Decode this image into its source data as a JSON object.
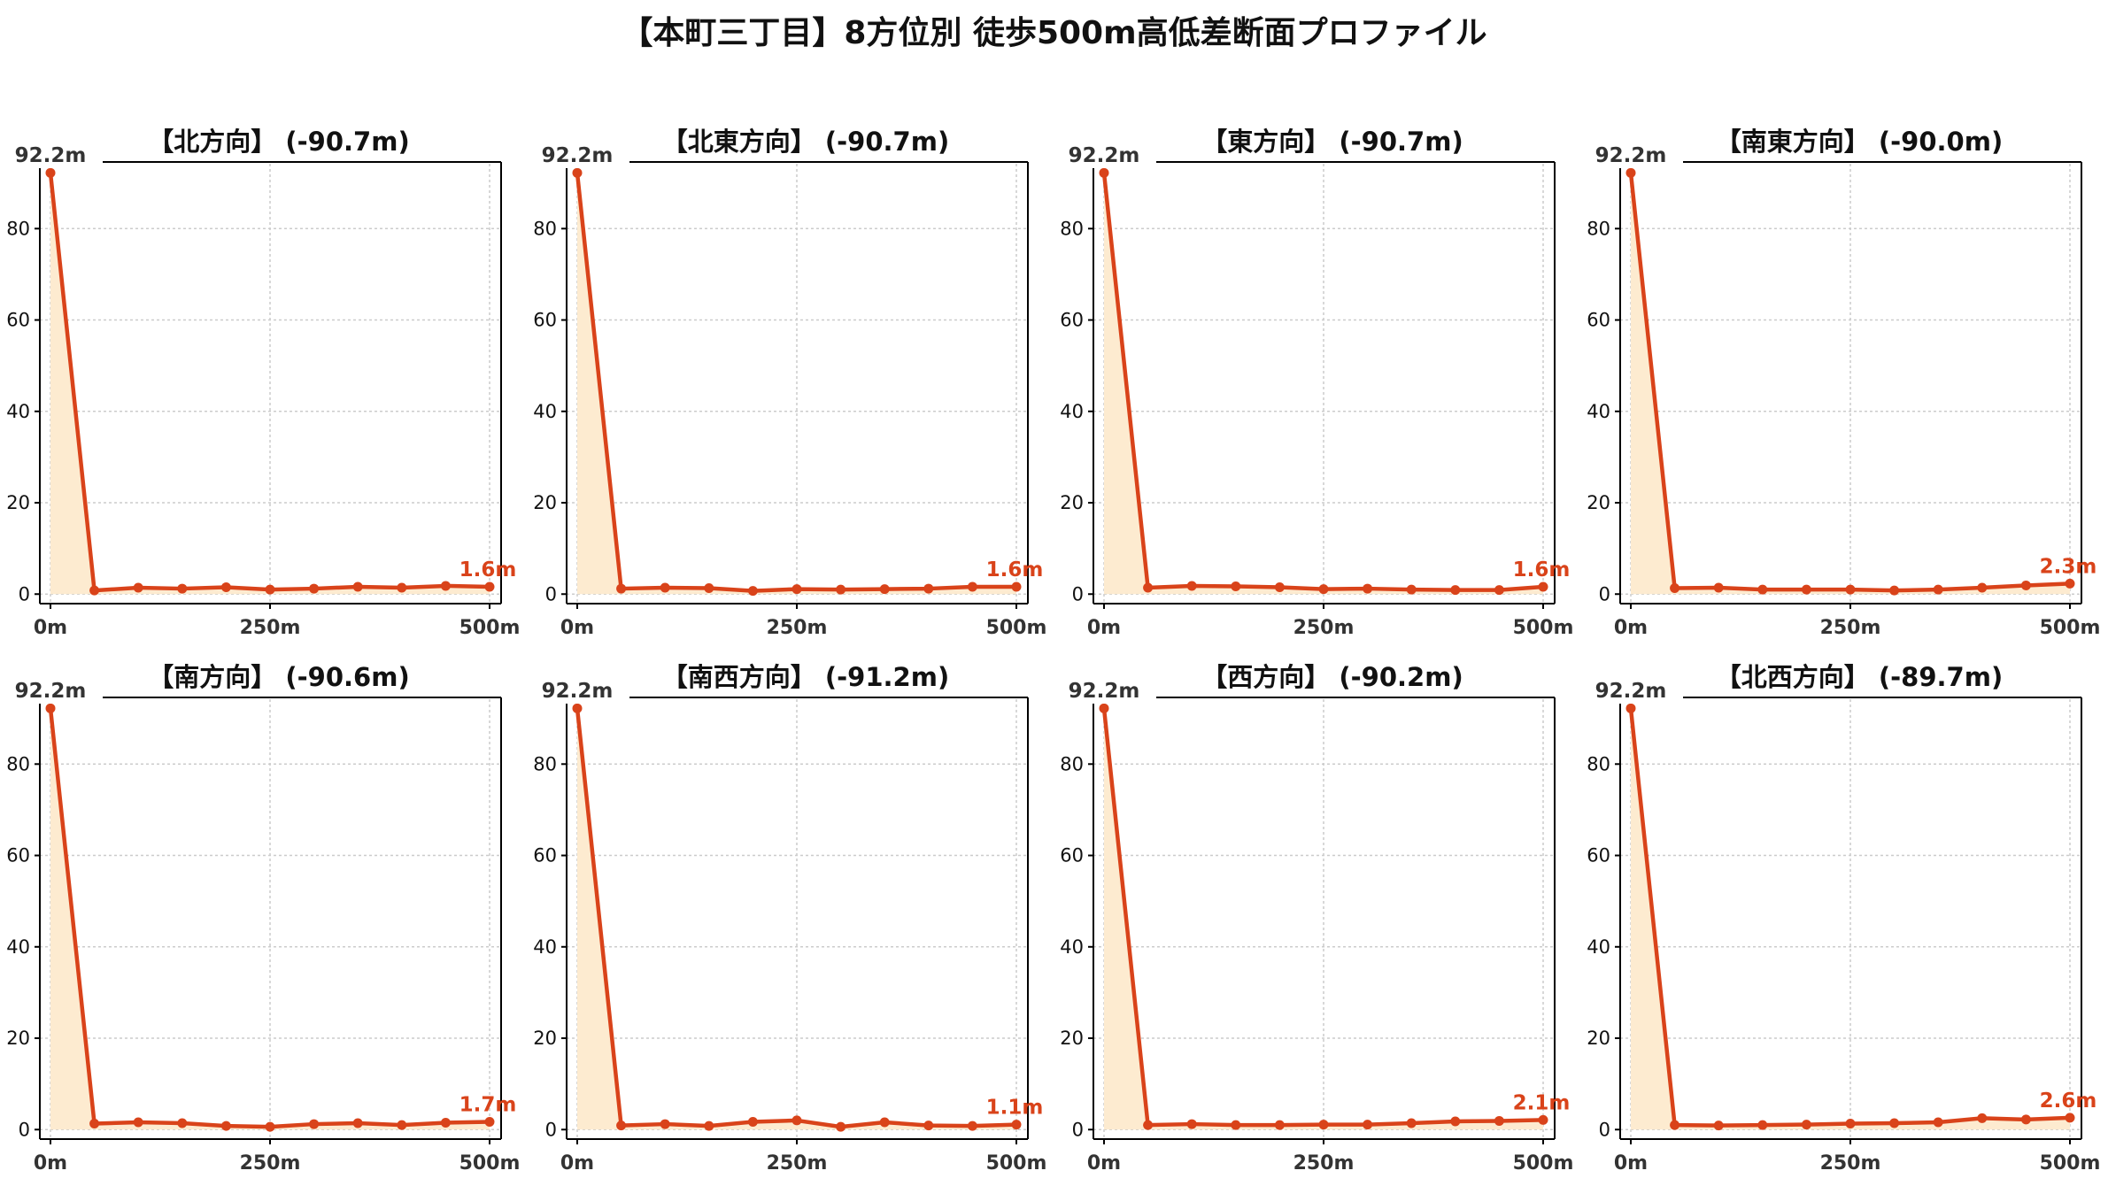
{
  "title": "【本町三丁目】8方位別 徒歩500m高低差断面プロファイル",
  "colors": {
    "line": "#d9431a",
    "fill": "#fdebd0",
    "start_label": "#333333",
    "end_label": "#d9431a",
    "grid": "#cccccc"
  },
  "chart_data": [
    {
      "type": "area",
      "title": "【北方向】 (-90.7m)",
      "direction": "【北方向】",
      "diff_label": "(-90.7m)",
      "x": [
        0,
        50,
        100,
        150,
        200,
        250,
        300,
        350,
        400,
        450,
        500
      ],
      "y": [
        92.2,
        0.8,
        1.4,
        1.2,
        1.5,
        1.0,
        1.2,
        1.6,
        1.4,
        1.8,
        1.6
      ],
      "start_label": "92.2m",
      "end_label": "1.6m",
      "xticks": [
        "0m",
        "250m",
        "500m"
      ],
      "yticks": [
        "0",
        "20",
        "40",
        "60",
        "80"
      ],
      "xlim": [
        0,
        500
      ],
      "ylim": [
        0,
        92.2
      ],
      "grid": true
    },
    {
      "type": "area",
      "title": "【北東方向】 (-90.7m)",
      "direction": "【北東方向】",
      "diff_label": "(-90.7m)",
      "x": [
        0,
        50,
        100,
        150,
        200,
        250,
        300,
        350,
        400,
        450,
        500
      ],
      "y": [
        92.2,
        1.2,
        1.4,
        1.3,
        0.7,
        1.1,
        1.0,
        1.1,
        1.2,
        1.6,
        1.6
      ],
      "start_label": "92.2m",
      "end_label": "1.6m",
      "xticks": [
        "0m",
        "250m",
        "500m"
      ],
      "yticks": [
        "0",
        "20",
        "40",
        "60",
        "80"
      ],
      "xlim": [
        0,
        500
      ],
      "ylim": [
        0,
        92.2
      ],
      "grid": true
    },
    {
      "type": "area",
      "title": "【東方向】 (-90.7m)",
      "direction": "【東方向】",
      "diff_label": "(-90.7m)",
      "x": [
        0,
        50,
        100,
        150,
        200,
        250,
        300,
        350,
        400,
        450,
        500
      ],
      "y": [
        92.2,
        1.4,
        1.8,
        1.7,
        1.5,
        1.1,
        1.2,
        1.0,
        0.9,
        0.9,
        1.6
      ],
      "start_label": "92.2m",
      "end_label": "1.6m",
      "xticks": [
        "0m",
        "250m",
        "500m"
      ],
      "yticks": [
        "0",
        "20",
        "40",
        "60",
        "80"
      ],
      "xlim": [
        0,
        500
      ],
      "ylim": [
        0,
        92.2
      ],
      "grid": true
    },
    {
      "type": "area",
      "title": "【南東方向】 (-90.0m)",
      "direction": "【南東方向】",
      "diff_label": "(-90.0m)",
      "x": [
        0,
        50,
        100,
        150,
        200,
        250,
        300,
        350,
        400,
        450,
        500
      ],
      "y": [
        92.2,
        1.3,
        1.4,
        1.0,
        1.0,
        1.0,
        0.8,
        1.0,
        1.4,
        1.9,
        2.3
      ],
      "start_label": "92.2m",
      "end_label": "2.3m",
      "xticks": [
        "0m",
        "250m",
        "500m"
      ],
      "yticks": [
        "0",
        "20",
        "40",
        "60",
        "80"
      ],
      "xlim": [
        0,
        500
      ],
      "ylim": [
        0,
        92.2
      ],
      "grid": true
    },
    {
      "type": "area",
      "title": "【南方向】 (-90.6m)",
      "direction": "【南方向】",
      "diff_label": "(-90.6m)",
      "x": [
        0,
        50,
        100,
        150,
        200,
        250,
        300,
        350,
        400,
        450,
        500
      ],
      "y": [
        92.2,
        1.3,
        1.6,
        1.4,
        0.8,
        0.6,
        1.2,
        1.4,
        1.0,
        1.5,
        1.7
      ],
      "start_label": "92.2m",
      "end_label": "1.7m",
      "xticks": [
        "0m",
        "250m",
        "500m"
      ],
      "yticks": [
        "0",
        "20",
        "40",
        "60",
        "80"
      ],
      "xlim": [
        0,
        500
      ],
      "ylim": [
        0,
        92.2
      ],
      "grid": true
    },
    {
      "type": "area",
      "title": "【南西方向】 (-91.2m)",
      "direction": "【南西方向】",
      "diff_label": "(-91.2m)",
      "x": [
        0,
        50,
        100,
        150,
        200,
        250,
        300,
        350,
        400,
        450,
        500
      ],
      "y": [
        92.2,
        0.9,
        1.2,
        0.8,
        1.7,
        2.0,
        0.6,
        1.6,
        0.9,
        0.8,
        1.1
      ],
      "start_label": "92.2m",
      "end_label": "1.1m",
      "xticks": [
        "0m",
        "250m",
        "500m"
      ],
      "yticks": [
        "0",
        "20",
        "40",
        "60",
        "80"
      ],
      "xlim": [
        0,
        500
      ],
      "ylim": [
        0,
        92.2
      ],
      "grid": true
    },
    {
      "type": "area",
      "title": "【西方向】 (-90.2m)",
      "direction": "【西方向】",
      "diff_label": "(-90.2m)",
      "x": [
        0,
        50,
        100,
        150,
        200,
        250,
        300,
        350,
        400,
        450,
        500
      ],
      "y": [
        92.2,
        1.0,
        1.2,
        1.0,
        1.0,
        1.1,
        1.1,
        1.4,
        1.8,
        1.9,
        2.1
      ],
      "start_label": "92.2m",
      "end_label": "2.1m",
      "xticks": [
        "0m",
        "250m",
        "500m"
      ],
      "yticks": [
        "0",
        "20",
        "40",
        "60",
        "80"
      ],
      "xlim": [
        0,
        500
      ],
      "ylim": [
        0,
        92.2
      ],
      "grid": true
    },
    {
      "type": "area",
      "title": "【北西方向】 (-89.7m)",
      "direction": "【北西方向】",
      "diff_label": "(-89.7m)",
      "x": [
        0,
        50,
        100,
        150,
        200,
        250,
        300,
        350,
        400,
        450,
        500
      ],
      "y": [
        92.2,
        1.0,
        0.9,
        1.0,
        1.1,
        1.3,
        1.4,
        1.6,
        2.5,
        2.2,
        2.6
      ],
      "start_label": "92.2m",
      "end_label": "2.6m",
      "xticks": [
        "0m",
        "250m",
        "500m"
      ],
      "yticks": [
        "0",
        "20",
        "40",
        "60",
        "80"
      ],
      "xlim": [
        0,
        500
      ],
      "ylim": [
        0,
        92.2
      ],
      "grid": true
    }
  ]
}
